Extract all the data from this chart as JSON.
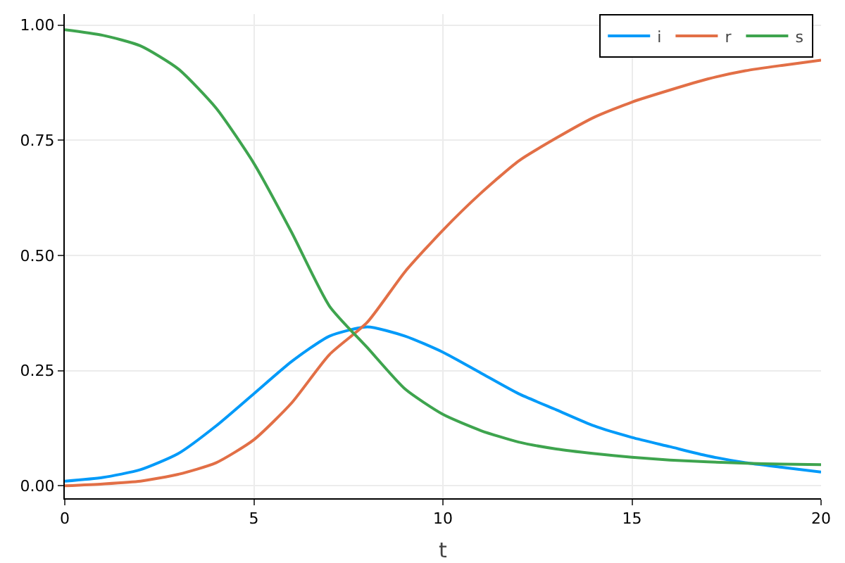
{
  "chart_data": {
    "type": "line",
    "xlabel": "t",
    "x": [
      0,
      1,
      2,
      3,
      4,
      5,
      6,
      7,
      8,
      9,
      10,
      11,
      12,
      13,
      14,
      15,
      16,
      17,
      18,
      19,
      20
    ],
    "series": [
      {
        "name": "i",
        "color": "#009af9",
        "values": [
          0.01,
          0.018,
          0.035,
          0.07,
          0.13,
          0.2,
          0.27,
          0.325,
          0.345,
          0.325,
          0.29,
          0.245,
          0.2,
          0.165,
          0.13,
          0.105,
          0.085,
          0.065,
          0.05,
          0.04,
          0.03
        ]
      },
      {
        "name": "r",
        "color": "#e26f46",
        "values": [
          0,
          0.004,
          0.01,
          0.025,
          0.05,
          0.1,
          0.18,
          0.285,
          0.355,
          0.465,
          0.555,
          0.635,
          0.705,
          0.755,
          0.8,
          0.833,
          0.859,
          0.883,
          0.901,
          0.913,
          0.924
        ]
      },
      {
        "name": "s",
        "color": "#3ea44e",
        "values": [
          0.99,
          0.978,
          0.955,
          0.905,
          0.82,
          0.7,
          0.55,
          0.39,
          0.3,
          0.21,
          0.155,
          0.12,
          0.095,
          0.08,
          0.07,
          0.062,
          0.056,
          0.052,
          0.049,
          0.047,
          0.046
        ]
      }
    ],
    "xlim": [
      0,
      20
    ],
    "xticks": [
      0,
      5,
      10,
      15,
      20
    ],
    "ylim": [
      -0.027,
      1.024
    ],
    "yticks": [
      {
        "value": 0,
        "label": "0.00"
      },
      {
        "value": 0.25,
        "label": "0.25"
      },
      {
        "value": 0.5,
        "label": "0.50"
      },
      {
        "value": 0.75,
        "label": "0.75"
      },
      {
        "value": 1,
        "label": "1.00"
      }
    ],
    "grid": true,
    "legend": "top right",
    "line_style": "solid",
    "marker": "none"
  }
}
